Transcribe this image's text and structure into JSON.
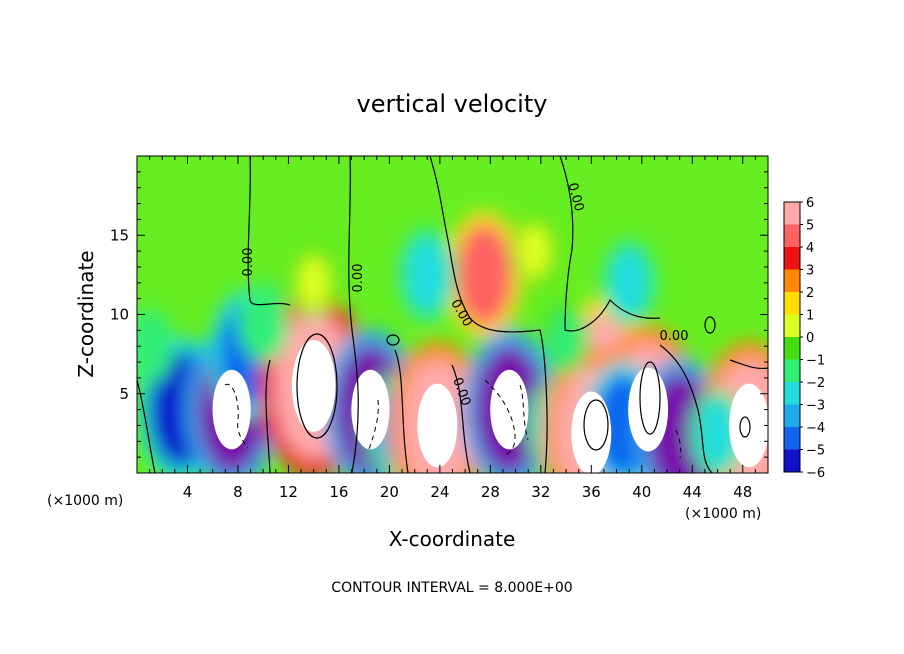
{
  "chart_data": {
    "type": "heatmap",
    "title": "vertical velocity",
    "xlabel": "X-coordinate",
    "ylabel": "Z-coordinate",
    "x_unit_left": "(×1000 m)",
    "x_unit_right": "(×1000 m)",
    "xlim": [
      0,
      50
    ],
    "ylim": [
      0,
      20
    ],
    "x_ticks": [
      4,
      8,
      12,
      16,
      20,
      24,
      28,
      32,
      36,
      40,
      44,
      48
    ],
    "y_ticks": [
      5,
      10,
      15
    ],
    "x_tick_labels": [
      "4",
      "8",
      "12",
      "16",
      "20",
      "24",
      "28",
      "32",
      "36",
      "40",
      "44",
      "48"
    ],
    "y_tick_labels": [
      "5",
      "10",
      "15"
    ],
    "colorbar": {
      "levels": [
        6,
        5,
        4,
        3,
        2,
        1,
        0,
        -1,
        -2,
        -3,
        -4,
        -5,
        -6
      ],
      "labels": [
        "6",
        "5",
        "4",
        "3",
        "2",
        "1",
        "0",
        "−1",
        "−2",
        "−3",
        "−4",
        "−5",
        "−6"
      ],
      "colors": [
        "#ffaaaa",
        "#ff6262",
        "#ee1111",
        "#ff8800",
        "#ffdd00",
        "#ddff22",
        "#44dd11",
        "#33ee77",
        "#22dddd",
        "#22aaee",
        "#1166ee",
        "#1111cc",
        "#7711aa"
      ],
      "clip_high_color": "#ffffff"
    },
    "contour_label": "0.00",
    "footer": "CONTOUR INTERVAL = 8.000E+00",
    "cells": [
      {
        "x": 3.5,
        "z": 4.0,
        "w": -5.5
      },
      {
        "x": 7.5,
        "z": 4.0,
        "w": -6.5
      },
      {
        "x": 8.8,
        "z": 7.5,
        "w": -4.5
      },
      {
        "x": 14.0,
        "z": 5.5,
        "w": 8.0
      },
      {
        "x": 18.5,
        "z": 4.0,
        "w": -6.5
      },
      {
        "x": 20.5,
        "z": 3.0,
        "w": -3.0
      },
      {
        "x": 23.8,
        "z": 3.0,
        "w": 7.0
      },
      {
        "x": 27.5,
        "z": 12.5,
        "w": 4.5
      },
      {
        "x": 23.0,
        "z": 12.5,
        "w": -2.5
      },
      {
        "x": 29.5,
        "z": 4.0,
        "w": -6.5
      },
      {
        "x": 33.0,
        "z": 3.0,
        "w": -2.0
      },
      {
        "x": 37.0,
        "z": 6.5,
        "w": 5.5
      },
      {
        "x": 36.0,
        "z": 2.5,
        "w": 7.0
      },
      {
        "x": 40.5,
        "z": 4.0,
        "w": 7.0
      },
      {
        "x": 38.5,
        "z": 3.0,
        "w": -4.5
      },
      {
        "x": 43.0,
        "z": 2.5,
        "w": -6.0
      },
      {
        "x": 48.5,
        "z": 3.0,
        "w": 7.0
      },
      {
        "x": 46.0,
        "z": 2.5,
        "w": -2.0
      },
      {
        "x": 39.0,
        "z": 12.0,
        "w": -2.0
      },
      {
        "x": 10.0,
        "z": 9.5,
        "w": -1.5
      },
      {
        "x": 1.0,
        "z": 8.0,
        "w": -1.2
      },
      {
        "x": 14.0,
        "z": 12.0,
        "w": 1.0
      },
      {
        "x": 31.5,
        "z": 14.0,
        "w": 1.0
      },
      {
        "x": 34.0,
        "z": 8.5,
        "w": -1.0
      }
    ]
  }
}
